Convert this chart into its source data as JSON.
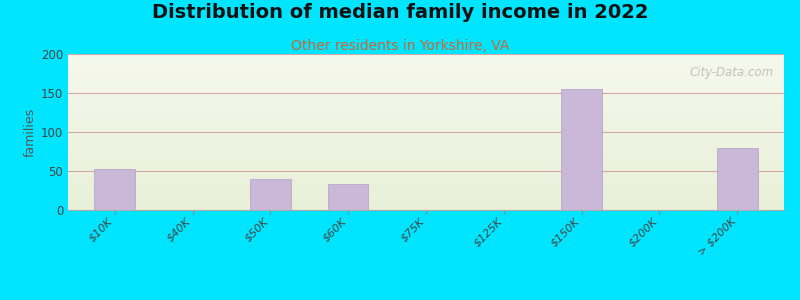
{
  "title": "Distribution of median family income in 2022",
  "subtitle": "Other residents in Yorkshire, VA",
  "ylabel": "families",
  "background_outer": "#00e5ff",
  "background_inner_top": "#f5f7ec",
  "background_inner_bottom": "#e8f0d8",
  "bar_color": "#c9b8d8",
  "bar_edge_color": "#b0a0c8",
  "title_fontsize": 14,
  "subtitle_fontsize": 10,
  "subtitle_color": "#cc6633",
  "ylabel_color": "#555555",
  "categories": [
    "$10K",
    "$40K",
    "$50K",
    "$60K",
    "$75K",
    "$125K",
    "$150K",
    "$200K",
    "> $200K"
  ],
  "values": [
    52,
    0,
    40,
    33,
    0,
    0,
    155,
    0,
    80
  ],
  "x_positions": [
    0,
    1,
    2,
    3,
    4,
    5,
    6,
    7,
    8
  ],
  "ylim": [
    0,
    200
  ],
  "yticks": [
    0,
    50,
    100,
    150,
    200
  ],
  "grid_color": "#d4a8a8",
  "watermark": "City-Data.com",
  "watermark_color": "#b0b0b0"
}
